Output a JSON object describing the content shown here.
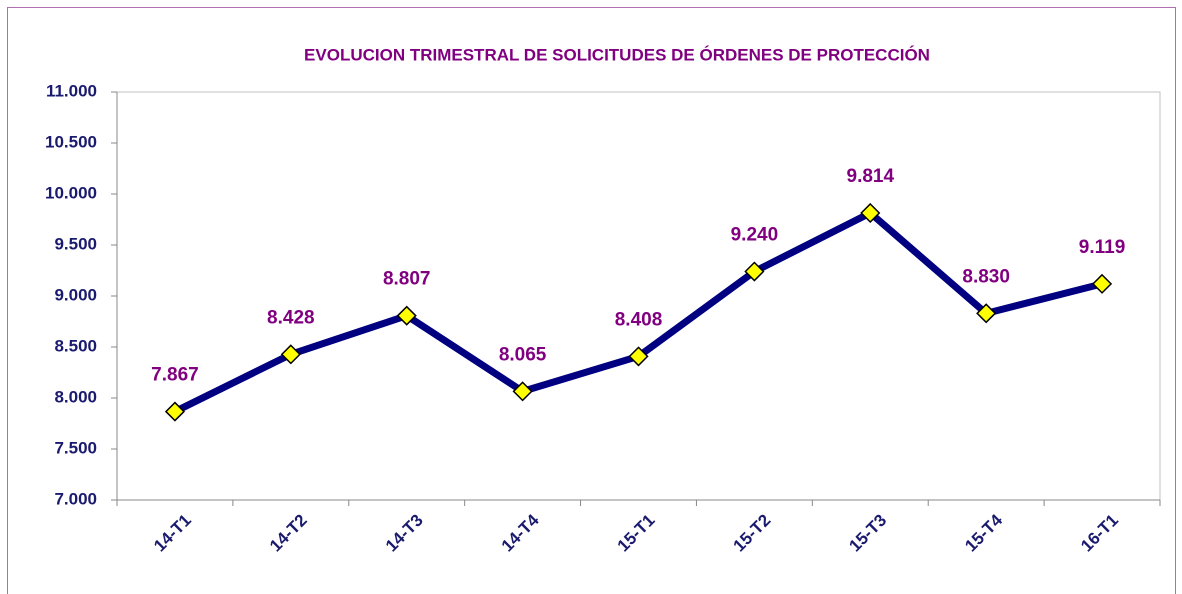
{
  "chart_data": {
    "type": "line",
    "title": "EVOLUCION TRIMESTRAL DE SOLICITUDES DE ÓRDENES DE PROTECCIÓN",
    "categories": [
      "14-T1",
      "14-T2",
      "14-T3",
      "14-T4",
      "15-T1",
      "15-T2",
      "15-T3",
      "15-T4",
      "16-T1"
    ],
    "values": [
      7867,
      8428,
      8807,
      8065,
      8408,
      9240,
      9814,
      8830,
      9119
    ],
    "value_labels": [
      "7.867",
      "8.428",
      "8.807",
      "8.065",
      "8.408",
      "9.240",
      "9.814",
      "8.830",
      "9.119"
    ],
    "color": "#000080",
    "marker_color": "#ffff00",
    "ylim": [
      7000,
      11000
    ],
    "yticks": [
      {
        "value": 7000,
        "label": "7.000"
      },
      {
        "value": 7500,
        "label": "7.500"
      },
      {
        "value": 8000,
        "label": "8.000"
      },
      {
        "value": 8500,
        "label": "8.500"
      },
      {
        "value": 9000,
        "label": "9.000"
      },
      {
        "value": 9500,
        "label": "9.500"
      },
      {
        "value": 10000,
        "label": "10.000"
      },
      {
        "value": 10500,
        "label": "10.500"
      },
      {
        "value": 11000,
        "label": "11.000"
      }
    ]
  }
}
